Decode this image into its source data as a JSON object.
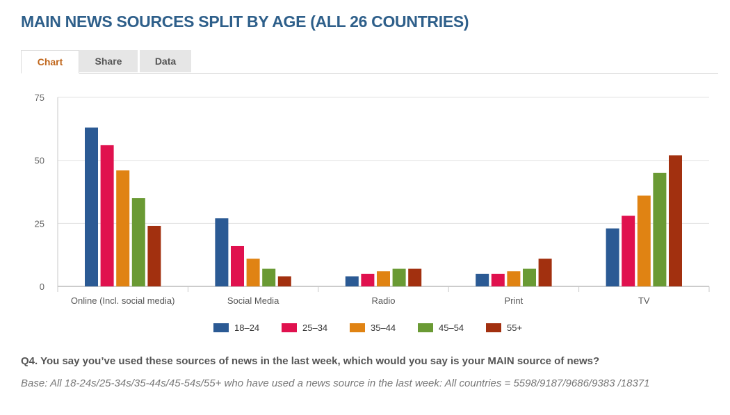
{
  "title": "MAIN NEWS SOURCES SPLIT BY AGE (ALL 26 COUNTRIES)",
  "tabs": [
    {
      "label": "Chart",
      "active": true
    },
    {
      "label": "Share",
      "active": false
    },
    {
      "label": "Data",
      "active": false
    }
  ],
  "chart_data": {
    "type": "bar",
    "categories": [
      "Online (Incl. social media)",
      "Social Media",
      "Radio",
      "Print",
      "TV"
    ],
    "series": [
      {
        "name": "18–24",
        "color": "#2b5a94",
        "values": [
          63,
          27,
          4,
          5,
          23
        ]
      },
      {
        "name": "25–34",
        "color": "#e0114e",
        "values": [
          56,
          16,
          5,
          5,
          28
        ]
      },
      {
        "name": "35–44",
        "color": "#e08313",
        "values": [
          46,
          11,
          6,
          6,
          36
        ]
      },
      {
        "name": "45–54",
        "color": "#6a9a34",
        "values": [
          35,
          7,
          7,
          7,
          45
        ]
      },
      {
        "name": "55+",
        "color": "#a2300f",
        "values": [
          24,
          4,
          7,
          11,
          52
        ]
      }
    ],
    "yticks": [
      0,
      25,
      50,
      75
    ],
    "ylim": [
      0,
      75
    ],
    "xlabel": "",
    "ylabel": "",
    "grid": true,
    "legend": "bottom"
  },
  "question": "Q4. You say you’ve used these sources of news in the last week, which would you say is your MAIN source of news?",
  "base": "Base: All 18-24s/25-34s/35-44s/45-54s/55+ who have used a news source in the last week: All countries = 5598/9187/9686/9383 /18371"
}
